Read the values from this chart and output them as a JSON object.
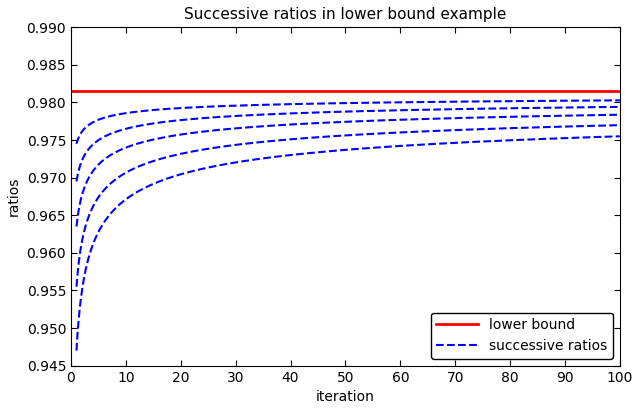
{
  "title": "Successive ratios in lower bound example",
  "xlabel": "iteration",
  "ylabel": "ratios",
  "xlim": [
    0,
    100
  ],
  "ylim": [
    0.945,
    0.99
  ],
  "yticks": [
    0.945,
    0.95,
    0.955,
    0.96,
    0.965,
    0.97,
    0.975,
    0.98,
    0.985,
    0.99
  ],
  "xticks": [
    0,
    10,
    20,
    30,
    40,
    50,
    60,
    70,
    80,
    90,
    100
  ],
  "lower_bound": 0.9815,
  "lower_bound_color": "#ff0000",
  "lower_bound_linewidth": 2.0,
  "dashed_color": "#0000ff",
  "dashed_linewidth": 1.5,
  "curve_offsets": [
    0.0345,
    0.026,
    0.018,
    0.012,
    0.007
  ],
  "curve_powers": [
    0.38,
    0.38,
    0.38,
    0.38,
    0.38
  ],
  "legend_lower_bound": "lower bound",
  "legend_successive": "successive ratios",
  "background_color": "#ffffff",
  "title_fontsize": 11,
  "axis_fontsize": 10,
  "tick_fontsize": 10
}
